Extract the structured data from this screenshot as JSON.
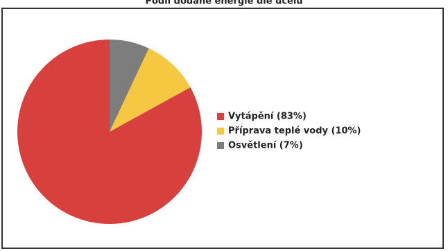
{
  "chart_data": {
    "type": "pie",
    "title": "Podíl dodané energie dle účelu",
    "categories": [
      "Vytápění (83%)",
      "Příprava teplé vody (10%)",
      "Osvětlení (7%)"
    ],
    "values": [
      83,
      10,
      7
    ],
    "colors": [
      "#d8403e",
      "#f6c842",
      "#7d7d7d"
    ],
    "legend": "right"
  }
}
